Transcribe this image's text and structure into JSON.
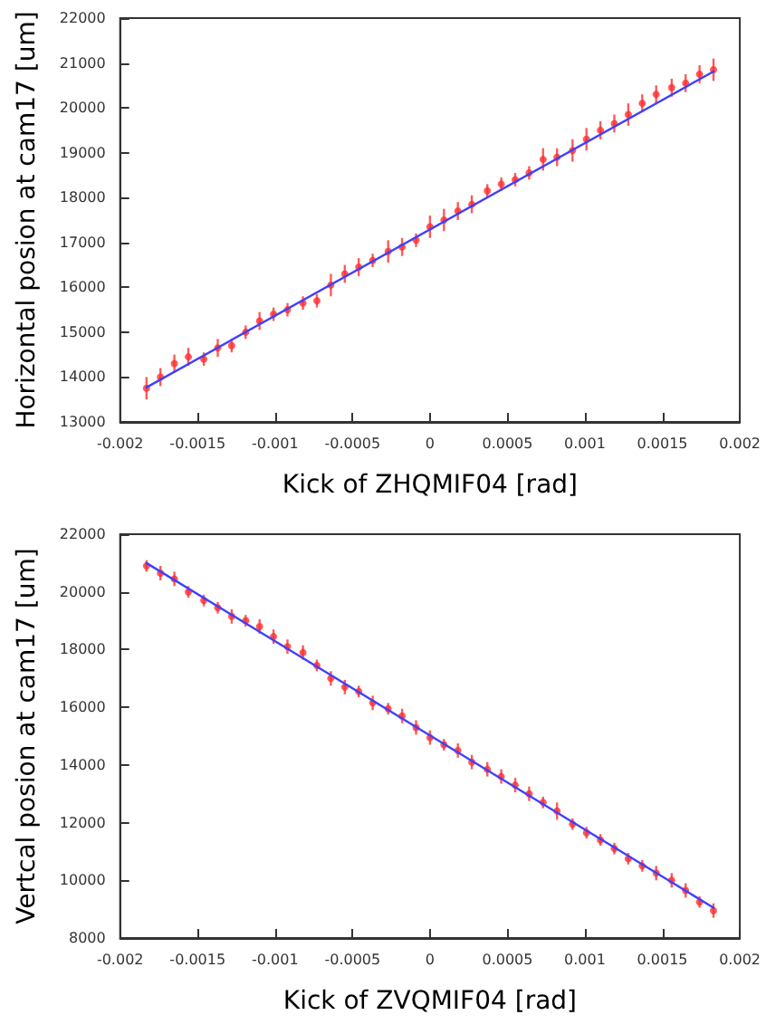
{
  "chart_data": [
    {
      "type": "scatter",
      "xlabel": "Kick of ZHQMIF04 [rad]",
      "ylabel": "Horizontal posion at cam17 [um]",
      "xlim": [
        -0.002,
        0.002
      ],
      "xticks": [
        -0.002,
        -0.0015,
        -0.001,
        -0.0005,
        0,
        0.0005,
        0.001,
        0.0015,
        0.002
      ],
      "ylim": [
        13000,
        22000
      ],
      "yticks": [
        13000,
        14000,
        15000,
        16000,
        17000,
        18000,
        19000,
        20000,
        21000,
        22000
      ],
      "marker": "circle",
      "series": [
        {
          "color": "#ff3030",
          "x": [
            -0.00183,
            -0.00174,
            -0.00165,
            -0.00156,
            -0.00146,
            -0.00137,
            -0.00128,
            -0.00119,
            -0.0011,
            -0.00101,
            -0.00092,
            -0.00082,
            -0.00073,
            -0.00064,
            -0.00055,
            -0.00046,
            -0.00037,
            -0.00027,
            -0.00018,
            -9e-05,
            0,
            9e-05,
            0.00018,
            0.00027,
            0.00037,
            0.00046,
            0.00055,
            0.00064,
            0.00073,
            0.00082,
            0.00092,
            0.00101,
            0.0011,
            0.00119,
            0.00128,
            0.00137,
            0.00146,
            0.00156,
            0.00165,
            0.00174,
            0.00183
          ],
          "values": [
            13750,
            14000,
            14300,
            14450,
            14400,
            14650,
            14700,
            15000,
            15250,
            15400,
            15500,
            15650,
            15700,
            16050,
            16300,
            16450,
            16600,
            16800,
            16900,
            17050,
            17350,
            17500,
            17700,
            17850,
            18150,
            18300,
            18400,
            18550,
            18850,
            18900,
            19050,
            19300,
            19500,
            19650,
            19850,
            20100,
            20300,
            20450,
            20550,
            20750,
            20850
          ],
          "errors": [
            250,
            200,
            200,
            200,
            150,
            200,
            150,
            150,
            200,
            150,
            150,
            150,
            150,
            250,
            200,
            200,
            150,
            250,
            200,
            150,
            250,
            250,
            200,
            200,
            150,
            150,
            150,
            150,
            250,
            200,
            250,
            250,
            200,
            200,
            250,
            200,
            200,
            200,
            200,
            200,
            250
          ]
        },
        {
          "type": "line",
          "color": "#4040ff",
          "line_style": "solid",
          "marker": "none",
          "x": [
            -0.00183,
            0.00183
          ],
          "values": [
            13770,
            20810
          ]
        }
      ]
    },
    {
      "type": "scatter",
      "xlabel": "Kick of ZVQMIF04 [rad]",
      "ylabel": "Vertcal posion at cam17 [um]",
      "xlim": [
        -0.002,
        0.002
      ],
      "xticks": [
        -0.002,
        -0.0015,
        -0.001,
        -0.0005,
        0,
        0.0005,
        0.001,
        0.0015,
        0.002
      ],
      "ylim": [
        8000,
        22000
      ],
      "yticks": [
        8000,
        10000,
        12000,
        14000,
        16000,
        18000,
        20000,
        22000
      ],
      "marker": "circle",
      "series": [
        {
          "color": "#ff3030",
          "x": [
            -0.00183,
            -0.00174,
            -0.00165,
            -0.00156,
            -0.00146,
            -0.00137,
            -0.00128,
            -0.00119,
            -0.0011,
            -0.00101,
            -0.00092,
            -0.00082,
            -0.00073,
            -0.00064,
            -0.00055,
            -0.00046,
            -0.00037,
            -0.00027,
            -0.00018,
            -9e-05,
            0,
            9e-05,
            0.00018,
            0.00027,
            0.00037,
            0.00046,
            0.00055,
            0.00064,
            0.00073,
            0.00082,
            0.00092,
            0.00101,
            0.0011,
            0.00119,
            0.00128,
            0.00137,
            0.00146,
            0.00156,
            0.00165,
            0.00174,
            0.00183
          ],
          "values": [
            20900,
            20650,
            20450,
            20000,
            19700,
            19450,
            19150,
            19000,
            18800,
            18450,
            18100,
            17900,
            17450,
            17000,
            16700,
            16550,
            16150,
            15950,
            15700,
            15300,
            14950,
            14700,
            14500,
            14100,
            13850,
            13600,
            13300,
            13000,
            12700,
            12400,
            11950,
            11650,
            11400,
            11100,
            10750,
            10500,
            10250,
            10000,
            9650,
            9250,
            8950
          ],
          "errors": [
            200,
            250,
            250,
            200,
            200,
            200,
            250,
            200,
            250,
            250,
            250,
            250,
            200,
            250,
            250,
            200,
            250,
            200,
            250,
            250,
            250,
            200,
            250,
            250,
            250,
            250,
            250,
            250,
            200,
            300,
            200,
            200,
            200,
            200,
            200,
            200,
            250,
            250,
            250,
            200,
            250
          ]
        },
        {
          "type": "line",
          "color": "#4040ff",
          "line_style": "solid",
          "marker": "none",
          "x": [
            -0.00183,
            0.00183
          ],
          "values": [
            21000,
            9050
          ]
        }
      ]
    }
  ]
}
